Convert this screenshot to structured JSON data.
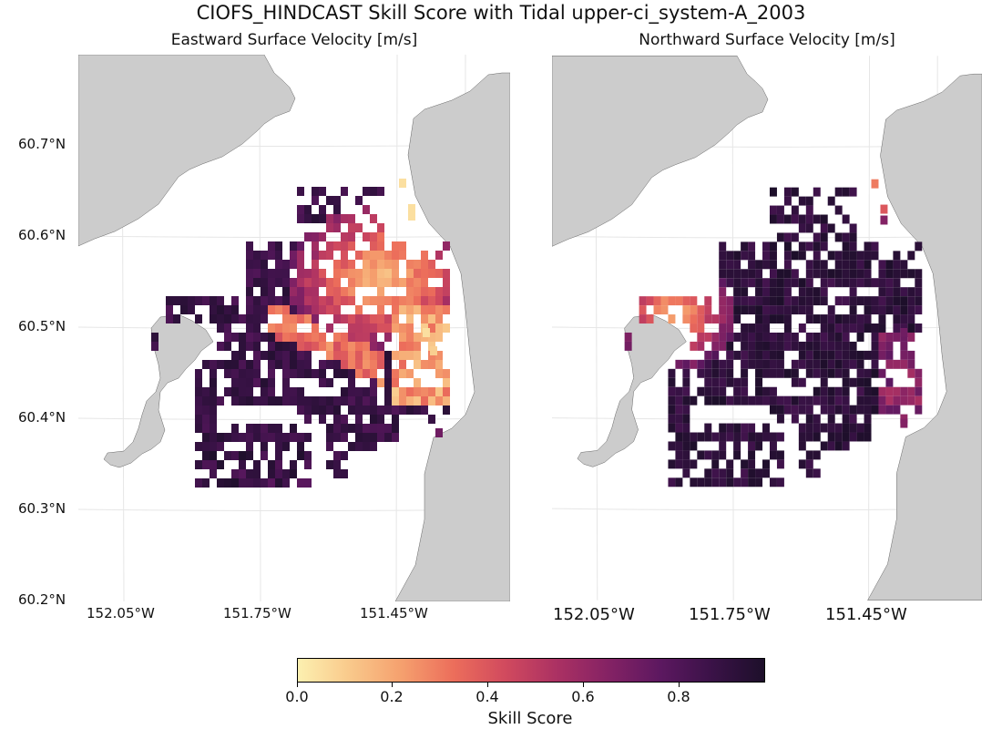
{
  "suptitle": "CIOFS_HINDCAST Skill Score with Tidal upper-ci_system-A_2003",
  "panels": [
    {
      "title": "Eastward Surface Velocity [m/s]"
    },
    {
      "title": "Northward Surface Velocity [m/s]"
    }
  ],
  "axes": {
    "y_ticks": [
      "60.7°N",
      "60.6°N",
      "60.5°N",
      "60.4°N",
      "60.3°N",
      "60.2°N"
    ],
    "x_ticks": [
      "152.05°W",
      "151.75°W",
      "151.45°W"
    ]
  },
  "colorbar": {
    "label": "Skill Score",
    "ticks": [
      "0.0",
      "0.2",
      "0.4",
      "0.6",
      "0.8"
    ],
    "range": [
      0.0,
      0.97
    ]
  },
  "colors": {
    "land": "#cccccc",
    "coast": "#666666",
    "grid": "#e6e6e6"
  },
  "chart_data": {
    "type": "heatmap",
    "title": "CIOFS_HINDCAST Skill Score with Tidal upper-ci_system-A_2003",
    "xlim": [
      -152.15,
      -151.21
    ],
    "ylim": [
      60.2,
      60.8
    ],
    "cell_size_deg": [
      0.02,
      0.01
    ],
    "colorbar_label": "Skill Score",
    "colormap": "magma_r",
    "vmin": 0.0,
    "vmax": 0.97,
    "series": [
      {
        "name": "Eastward Surface Velocity [m/s]",
        "description": "skill grid over upper Cook Inlet; high skill (0.7-0.95) in west and south, low skill (0.0-0.3) on east side and near 151.45°W-151.55°W, 60.5°N-60.63°N"
      },
      {
        "name": "Northward Surface Velocity [m/s]",
        "description": "mostly high skill (0.8-0.97) across the domain; lower skill (0.1-0.4) near 151.95°W-151.85°W, 60.47°N-60.55°N"
      }
    ]
  }
}
